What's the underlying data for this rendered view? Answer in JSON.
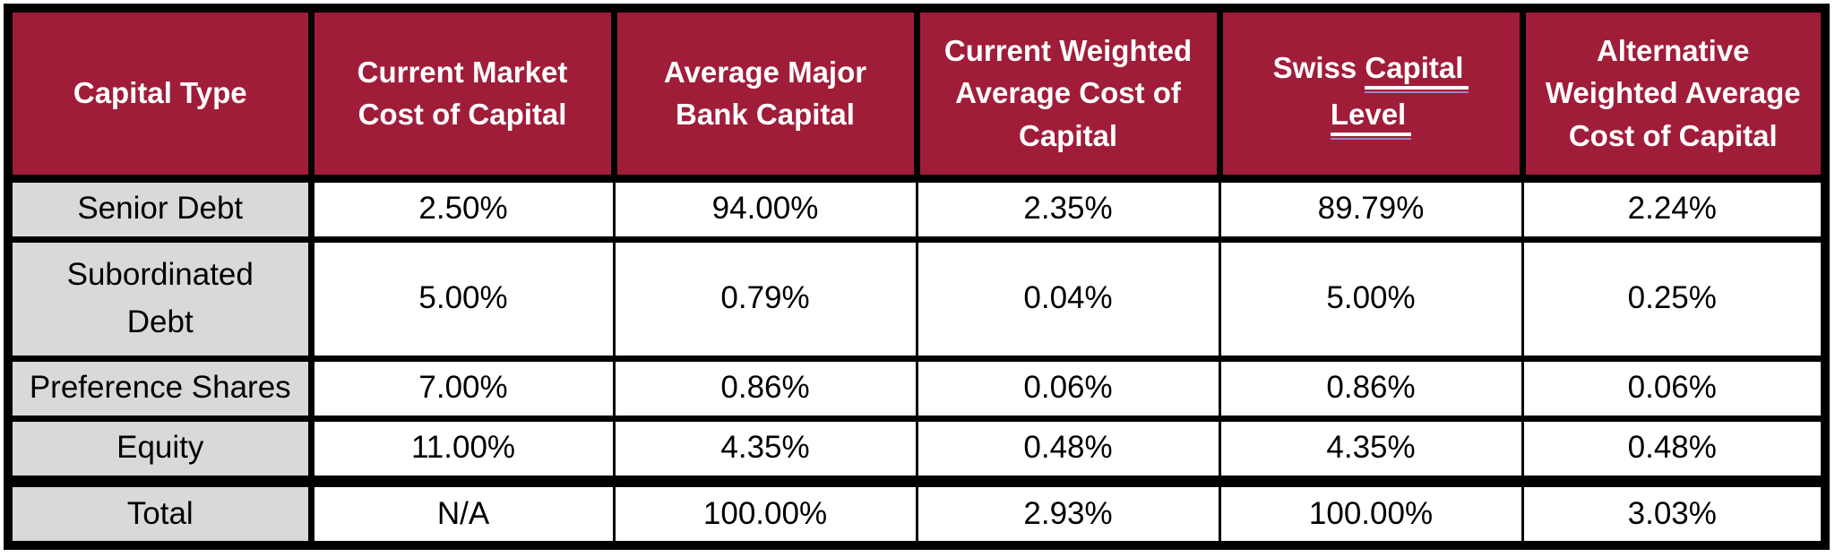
{
  "chart_data": {
    "type": "table",
    "columns": [
      "Capital Type",
      "Current Market Cost of Capital",
      "Average Major Bank Capital",
      "Current Weighted Average Cost of Capital",
      "Swiss Capital Level",
      "Alternative Weighted Average Cost of Capital"
    ],
    "header_lines": [
      [
        "Capital Type"
      ],
      [
        "Current Market",
        "Cost of Capital"
      ],
      [
        "Average Major",
        "Bank Capital"
      ],
      [
        "Current Weighted",
        "Average Cost of",
        "Capital"
      ],
      [
        "Swiss Capital",
        "Level"
      ],
      [
        "Alternative",
        "Weighted Average",
        "Cost of Capital"
      ]
    ],
    "swiss_header": {
      "prefix": "Swiss",
      "underlined_word_1": "Capital",
      "underlined_word_2": "Level"
    },
    "rows": [
      {
        "label": "Senior Debt",
        "label_lines": [
          "Senior Debt"
        ],
        "values": [
          "2.50%",
          "94.00%",
          "2.35%",
          "89.79%",
          "2.24%"
        ]
      },
      {
        "label": "Subordinated Debt",
        "label_lines": [
          "Subordinated",
          "Debt"
        ],
        "values": [
          "5.00%",
          "0.79%",
          "0.04%",
          "5.00%",
          "0.25%"
        ]
      },
      {
        "label": "Preference Shares",
        "label_lines": [
          "Preference Shares"
        ],
        "values": [
          "7.00%",
          "0.86%",
          "0.06%",
          "0.86%",
          "0.06%"
        ]
      },
      {
        "label": "Equity",
        "label_lines": [
          "Equity"
        ],
        "values": [
          "11.00%",
          "4.35%",
          "0.48%",
          "4.35%",
          "0.48%"
        ]
      },
      {
        "label": "Total",
        "label_lines": [
          "Total"
        ],
        "values": [
          "N/A",
          "100.00%",
          "2.93%",
          "100.00%",
          "3.03%"
        ]
      }
    ],
    "colors": {
      "header_bg": "#A01D39",
      "header_text": "#FFFFFF",
      "row_label_bg": "#D9D9D9",
      "cell_bg": "#FFFFFF",
      "border": "#000000",
      "grammar_underline": "#9B84C6"
    }
  }
}
